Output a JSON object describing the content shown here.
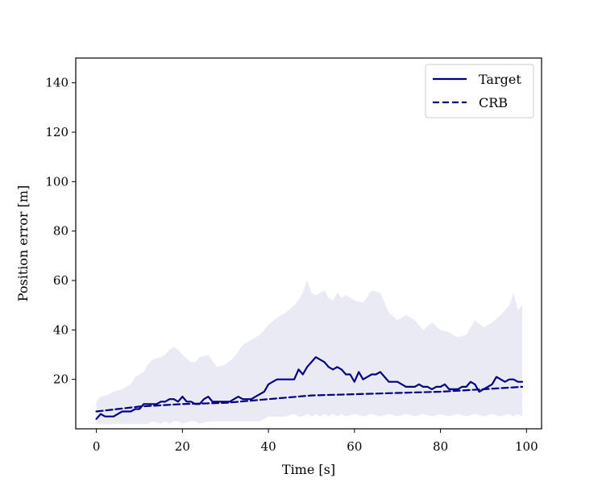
{
  "chart_data": {
    "type": "line",
    "title": "",
    "xlabel": "Time [s]",
    "ylabel": "Position error [m]",
    "xlim": [
      -4.8,
      103.5
    ],
    "ylim": [
      0,
      150
    ],
    "xticks": [
      0,
      20,
      40,
      60,
      80,
      100
    ],
    "yticks": [
      20,
      40,
      60,
      80,
      100,
      120,
      140
    ],
    "xtick_labels": [
      "0",
      "20",
      "40",
      "60",
      "80",
      "100"
    ],
    "ytick_labels": [
      "20",
      "40",
      "60",
      "80",
      "100",
      "120",
      "140"
    ],
    "grid": false,
    "legend_position": "top-right",
    "colors": {
      "series": "#000080",
      "band": "#e9eaf4"
    },
    "band": {
      "x": [
        0,
        1,
        3,
        4,
        6,
        7,
        8,
        9,
        10,
        11,
        12,
        13,
        15,
        16,
        17,
        18,
        19,
        20,
        22,
        23,
        24,
        26,
        28,
        30,
        32,
        34,
        36,
        38,
        40,
        42,
        44,
        46,
        47,
        48,
        49,
        50,
        51,
        52,
        53,
        54,
        55,
        56,
        57,
        58,
        60,
        62,
        64,
        66,
        68,
        70,
        72,
        74,
        76,
        78,
        80,
        82,
        84,
        86,
        88,
        90,
        92,
        94,
        96,
        97,
        98,
        99
      ],
      "upper": [
        11,
        13,
        14,
        15,
        16,
        17,
        18,
        21,
        22,
        23,
        26,
        28,
        29,
        30,
        32,
        33,
        32,
        30,
        27,
        27,
        29,
        30,
        25,
        26,
        29,
        34,
        36,
        38,
        42,
        45,
        47,
        50,
        52,
        55,
        60,
        55,
        54,
        55,
        56,
        53,
        52,
        55,
        53,
        54,
        52,
        51,
        56,
        55,
        47,
        44,
        46,
        44,
        40,
        43,
        40,
        39,
        37,
        38,
        44,
        41,
        43,
        46,
        50,
        55,
        48,
        50
      ],
      "lower": [
        2,
        2,
        2,
        2,
        2,
        2,
        2,
        2,
        2,
        2,
        2,
        3,
        2,
        3,
        2,
        3,
        3,
        2,
        3,
        3,
        2,
        3,
        3,
        3,
        3,
        3,
        3,
        3,
        5,
        5,
        5,
        6,
        5,
        5,
        6,
        5,
        6,
        5,
        6,
        5,
        6,
        5,
        6,
        5,
        6,
        5,
        6,
        5,
        6,
        5,
        6,
        5,
        6,
        5,
        6,
        5,
        6,
        5,
        6,
        5,
        6,
        5,
        6,
        5,
        6,
        5
      ]
    },
    "series": [
      {
        "name": "Target",
        "style": "solid",
        "x": [
          0,
          1,
          2,
          3,
          4,
          5,
          6,
          7,
          8,
          9,
          10,
          11,
          12,
          13,
          14,
          15,
          16,
          17,
          18,
          19,
          20,
          21,
          22,
          23,
          24,
          25,
          26,
          27,
          28,
          29,
          30,
          31,
          32,
          33,
          34,
          35,
          36,
          37,
          38,
          39,
          40,
          41,
          42,
          43,
          44,
          45,
          46,
          47,
          48,
          49,
          50,
          51,
          52,
          53,
          54,
          55,
          56,
          57,
          58,
          59,
          60,
          61,
          62,
          63,
          64,
          65,
          66,
          67,
          68,
          69,
          70,
          71,
          72,
          73,
          74,
          75,
          76,
          77,
          78,
          79,
          80,
          81,
          82,
          83,
          84,
          85,
          86,
          87,
          88,
          89,
          90,
          91,
          92,
          93,
          94,
          95,
          96,
          97,
          98,
          99
        ],
        "y": [
          4,
          6,
          5,
          5,
          5,
          6,
          7,
          7,
          7,
          8,
          8,
          10,
          10,
          10,
          10,
          11,
          11,
          12,
          12,
          11,
          13,
          11,
          11,
          10,
          10,
          12,
          13,
          11,
          11,
          11,
          11,
          11,
          12,
          13,
          12,
          12,
          12,
          13,
          14,
          15,
          18,
          19,
          20,
          20,
          20,
          20,
          20,
          24,
          22,
          25,
          27,
          29,
          28,
          27,
          25,
          24,
          25,
          24,
          22,
          22,
          19,
          23,
          20,
          21,
          22,
          22,
          23,
          21,
          19,
          19,
          19,
          18,
          17,
          17,
          17,
          18,
          17,
          17,
          16,
          17,
          17,
          18,
          16,
          16,
          16,
          17,
          17,
          19,
          18,
          15,
          16,
          17,
          18,
          21,
          20,
          19,
          20,
          20,
          19,
          19
        ]
      },
      {
        "name": "CRB",
        "style": "dashed",
        "x": [
          0,
          10,
          20,
          30,
          40,
          50,
          60,
          70,
          80,
          90,
          99
        ],
        "y": [
          7,
          9,
          10,
          10.5,
          12,
          13.5,
          14,
          14.5,
          15,
          16,
          17
        ]
      }
    ]
  }
}
